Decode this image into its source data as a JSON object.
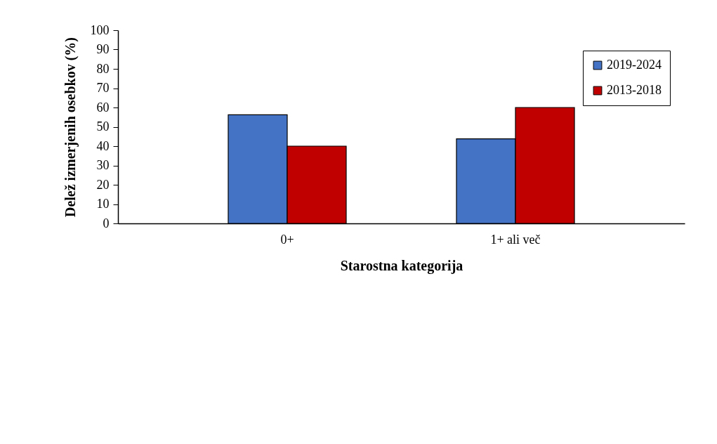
{
  "chart_data": {
    "type": "bar",
    "xlabel": "Starostna kategorija",
    "ylabel": "Delež izmerjenih osebkov (%)",
    "categories": [
      "0+",
      "1+ ali več"
    ],
    "series": [
      {
        "name": "2019-2024",
        "color": "#4472c4",
        "values": [
          56.2,
          43.8
        ]
      },
      {
        "name": "2013-2018",
        "color": "#c00000",
        "values": [
          40,
          60
        ]
      }
    ],
    "ylim": [
      0,
      100
    ],
    "yticks": [
      0,
      10,
      20,
      30,
      40,
      50,
      60,
      70,
      80,
      90,
      100
    ],
    "grid": false,
    "legend": "top right"
  }
}
